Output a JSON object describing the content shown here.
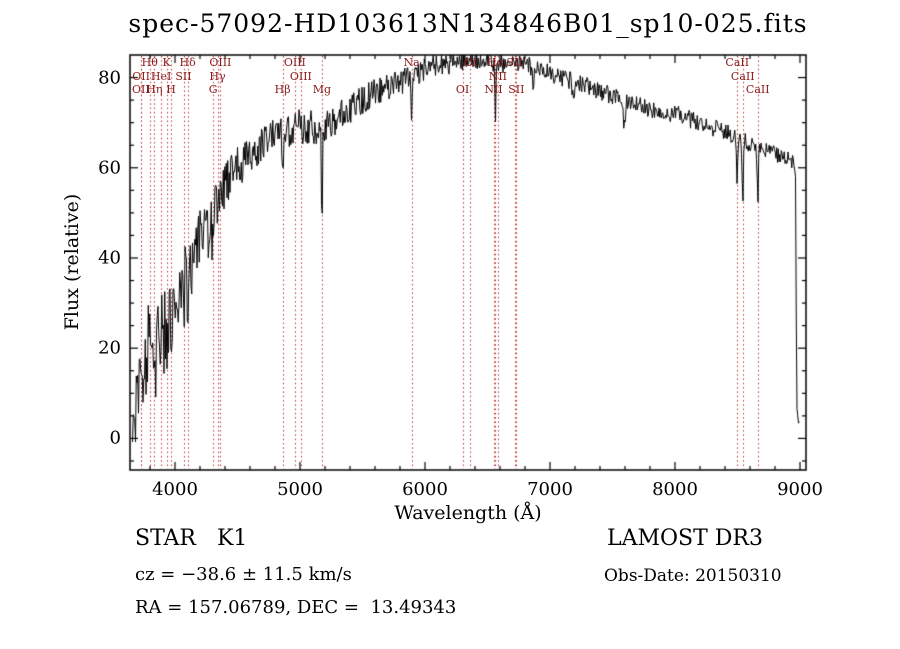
{
  "footer": {
    "class_label": "STAR   K1",
    "survey": "LAMOST DR3",
    "cz": "cz = −38.6 ± 11.5 km/s",
    "obs_date": "Obs-Date: 20150310",
    "ra_dec": "RA = 157.06789, DEC =  13.49343"
  },
  "chart_data": {
    "type": "line",
    "title": "spec-57092-HD103613N134846B01_sp10-025.fits",
    "xlabel": "Wavelength (Å)",
    "ylabel": "Flux (relative)",
    "xlim": [
      3640,
      9048
    ],
    "ylim": [
      -7,
      85
    ],
    "xticks": [
      4000,
      5000,
      6000,
      7000,
      8000,
      9000
    ],
    "yticks": [
      0,
      20,
      40,
      60,
      80
    ],
    "x_minor_step": 200,
    "y_minor_step": 5,
    "grid": false,
    "series_color": "#000000",
    "marker_color": "#bb3333",
    "label_color": "#8b1a1a",
    "spectral_lines": [
      {
        "label": "OII",
        "wavelength": 3727,
        "row": 2
      },
      {
        "label": "OII",
        "wavelength": 3729,
        "row": 1
      },
      {
        "label": "Hθ",
        "wavelength": 3798,
        "row": 0
      },
      {
        "label": "Hη",
        "wavelength": 3835,
        "row": 2
      },
      {
        "label": "HeI",
        "wavelength": 3889,
        "row": 1
      },
      {
        "label": "K",
        "wavelength": 3933,
        "row": 0
      },
      {
        "label": "H",
        "wavelength": 3968,
        "row": 2
      },
      {
        "label": "SII",
        "wavelength": 4068,
        "row": 1
      },
      {
        "label": "Hδ",
        "wavelength": 4101,
        "row": 0
      },
      {
        "label": "G",
        "wavelength": 4305,
        "row": 2
      },
      {
        "label": "Hγ",
        "wavelength": 4340,
        "row": 1
      },
      {
        "label": "OIII",
        "wavelength": 4363,
        "row": 0
      },
      {
        "label": "Hβ",
        "wavelength": 4861,
        "row": 2
      },
      {
        "label": "OIII",
        "wavelength": 4959,
        "row": 0
      },
      {
        "label": "OIII",
        "wavelength": 5007,
        "row": 1
      },
      {
        "label": "Mg",
        "wavelength": 5175,
        "row": 2
      },
      {
        "label": "Na",
        "wavelength": 5893,
        "row": 0
      },
      {
        "label": "OI",
        "wavelength": 6300,
        "row": 2
      },
      {
        "label": "OI",
        "wavelength": 6363,
        "row": 0
      },
      {
        "label": "NII",
        "wavelength": 6548,
        "row": 2
      },
      {
        "label": "Hα",
        "wavelength": 6563,
        "row": 0
      },
      {
        "label": "NII",
        "wavelength": 6583,
        "row": 1
      },
      {
        "label": "SII",
        "wavelength": 6716,
        "row": 0
      },
      {
        "label": "SII",
        "wavelength": 6731,
        "row": 2
      },
      {
        "label": "CaII",
        "wavelength": 8498,
        "row": 0
      },
      {
        "label": "CaII",
        "wavelength": 8542,
        "row": 1
      },
      {
        "label": "CaII",
        "wavelength": 8662,
        "row": 2
      }
    ],
    "flux_points": [
      [
        3660,
        3
      ],
      [
        3680,
        9
      ],
      [
        3700,
        13
      ],
      [
        3730,
        16
      ],
      [
        3760,
        18
      ],
      [
        3800,
        21
      ],
      [
        3850,
        24
      ],
      [
        3900,
        25
      ],
      [
        3950,
        27
      ],
      [
        4000,
        30
      ],
      [
        4050,
        34
      ],
      [
        4100,
        38
      ],
      [
        4150,
        42
      ],
      [
        4200,
        45
      ],
      [
        4250,
        47
      ],
      [
        4300,
        50
      ],
      [
        4350,
        53
      ],
      [
        4400,
        56
      ],
      [
        4450,
        58
      ],
      [
        4500,
        60
      ],
      [
        4600,
        63
      ],
      [
        4700,
        65
      ],
      [
        4800,
        67
      ],
      [
        4900,
        68
      ],
      [
        5000,
        69
      ],
      [
        5100,
        69
      ],
      [
        5200,
        69
      ],
      [
        5300,
        71
      ],
      [
        5400,
        73
      ],
      [
        5500,
        75
      ],
      [
        5600,
        77
      ],
      [
        5700,
        78
      ],
      [
        5800,
        79
      ],
      [
        5900,
        80
      ],
      [
        6000,
        82
      ],
      [
        6100,
        83
      ],
      [
        6200,
        83
      ],
      [
        6300,
        84
      ],
      [
        6400,
        84
      ],
      [
        6500,
        84
      ],
      [
        6600,
        83
      ],
      [
        6700,
        83
      ],
      [
        6800,
        83
      ],
      [
        6900,
        82
      ],
      [
        7000,
        81
      ],
      [
        7100,
        80
      ],
      [
        7200,
        79
      ],
      [
        7300,
        78
      ],
      [
        7400,
        77
      ],
      [
        7500,
        76
      ],
      [
        7600,
        75
      ],
      [
        7700,
        74
      ],
      [
        7800,
        73
      ],
      [
        7900,
        72
      ],
      [
        8000,
        72
      ],
      [
        8100,
        71
      ],
      [
        8200,
        70
      ],
      [
        8300,
        69
      ],
      [
        8400,
        68
      ],
      [
        8500,
        67
      ],
      [
        8600,
        65
      ],
      [
        8700,
        64
      ],
      [
        8800,
        63
      ],
      [
        8900,
        62
      ],
      [
        8950,
        61
      ],
      [
        8966,
        59
      ],
      [
        8972,
        12
      ],
      [
        8980,
        4
      ],
      [
        8995,
        3
      ]
    ],
    "noise_points": [
      [
        3660,
        12
      ],
      [
        3750,
        10
      ],
      [
        3850,
        9
      ],
      [
        3950,
        8
      ],
      [
        4050,
        7
      ],
      [
        4200,
        6
      ],
      [
        4400,
        5
      ],
      [
        4600,
        4.5
      ],
      [
        4800,
        4.2
      ],
      [
        5000,
        4
      ],
      [
        5200,
        3.6
      ],
      [
        5500,
        3.2
      ],
      [
        5800,
        2.8
      ],
      [
        6100,
        2.4
      ],
      [
        6500,
        2.2
      ],
      [
        7000,
        2
      ],
      [
        7600,
        2
      ],
      [
        8200,
        2
      ],
      [
        8800,
        1.8
      ],
      [
        8995,
        1.5
      ]
    ],
    "absorption_features": [
      {
        "wavelength": 3933,
        "depth": 10,
        "width": 6
      },
      {
        "wavelength": 3968,
        "depth": 10,
        "width": 6
      },
      {
        "wavelength": 4101,
        "depth": 8,
        "width": 6
      },
      {
        "wavelength": 4305,
        "depth": 8,
        "width": 9
      },
      {
        "wavelength": 4340,
        "depth": 6,
        "width": 6
      },
      {
        "wavelength": 4861,
        "depth": 8,
        "width": 6
      },
      {
        "wavelength": 5175,
        "depth": 24,
        "width": 5
      },
      {
        "wavelength": 5893,
        "depth": 9,
        "width": 6
      },
      {
        "wavelength": 6300,
        "depth": 3,
        "width": 5
      },
      {
        "wavelength": 6563,
        "depth": 13,
        "width": 6
      },
      {
        "wavelength": 6867,
        "depth": 4,
        "width": 9
      },
      {
        "wavelength": 7186,
        "depth": 3,
        "width": 10
      },
      {
        "wavelength": 7594,
        "depth": 5,
        "width": 12
      },
      {
        "wavelength": 8498,
        "depth": 11,
        "width": 6
      },
      {
        "wavelength": 8542,
        "depth": 13,
        "width": 7
      },
      {
        "wavelength": 8662,
        "depth": 12,
        "width": 7
      }
    ]
  }
}
